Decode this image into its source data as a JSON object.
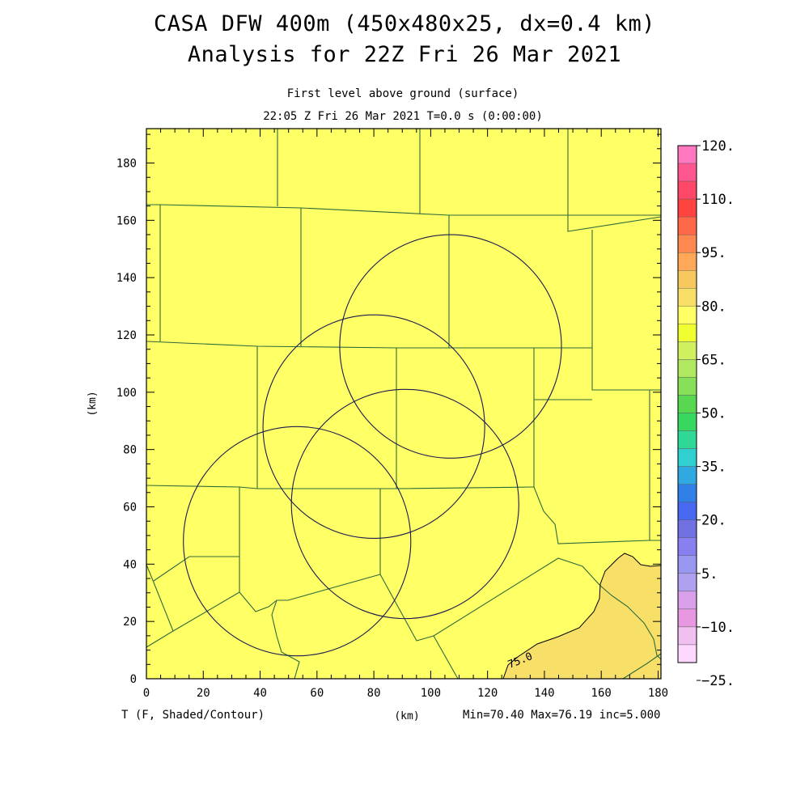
{
  "header": {
    "title_line1": "CASA DFW 400m (450x480x25, dx=0.4 km)",
    "title_line2": "Analysis for 22Z Fri 26 Mar 2021",
    "level_label": "First level above ground (surface)",
    "time_label": "22:05 Z Fri 26 Mar 2021   T=0.0 s (0:00:00)"
  },
  "axes": {
    "x_unit": "(km)",
    "y_unit": "(km)",
    "x_ticks": [
      "0",
      "20",
      "40",
      "60",
      "80",
      "100",
      "120",
      "140",
      "160",
      "180"
    ],
    "y_ticks": [
      "0",
      "20",
      "40",
      "60",
      "80",
      "100",
      "120",
      "140",
      "160",
      "180"
    ],
    "x_range_km": [
      0,
      181
    ],
    "y_range_km": [
      0,
      192
    ]
  },
  "footer": {
    "field_label": "T (F, Shaded/Contour)",
    "stats": "Min=70.40 Max=76.19 inc=5.000"
  },
  "contour_label": "75.0",
  "colorbar": {
    "labels": [
      "120.",
      "110.",
      "95.",
      "80.",
      "65.",
      "50.",
      "35.",
      "20.",
      "5.",
      "−10.",
      "−25."
    ],
    "colors": [
      "#ff78c0",
      "#ff5890",
      "#ff4868",
      "#ff4440",
      "#ff6848",
      "#ff8850",
      "#ffa858",
      "#f8c860",
      "#f8e068",
      "#ffff66",
      "#f0ff30",
      "#d0f060",
      "#b0e860",
      "#88e058",
      "#58d850",
      "#38d860",
      "#30d898",
      "#30d0d0",
      "#30a8e0",
      "#3080e8",
      "#4868f0",
      "#7070e0",
      "#8880f0",
      "#9898f0",
      "#b0a0f0",
      "#d8a0e8",
      "#e898e0",
      "#f0c0f0",
      "#ffd8ff"
    ],
    "min_fill_color": "#ffff66",
    "warm_fill_color": "#f8e068"
  },
  "radars": [
    {
      "center_km": [
        107,
        116
      ],
      "radius_km": 39
    },
    {
      "center_km": [
        80,
        88
      ],
      "radius_km": 39
    },
    {
      "center_km": [
        91,
        61
      ],
      "radius_km": 40
    },
    {
      "center_km": [
        53,
        48
      ],
      "radius_km": 40
    }
  ]
}
